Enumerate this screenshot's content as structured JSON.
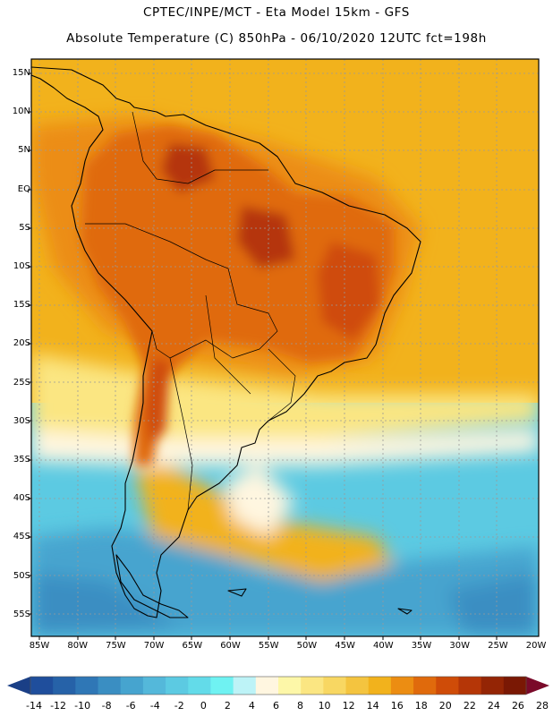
{
  "header": {
    "line1": "CPTEC/INPE/MCT -   Eta Model 15km - GFS",
    "line2": "Absolute Temperature (C) 850hPa - 06/10/2020 12UTC fct=198h"
  },
  "map": {
    "lat_labels": [
      "15N",
      "10N",
      "5N",
      "EQ",
      "5S",
      "10S",
      "15S",
      "20S",
      "25S",
      "30S",
      "35S",
      "40S",
      "45S",
      "50S",
      "55S"
    ],
    "lon_labels": [
      "85W",
      "80W",
      "75W",
      "70W",
      "65W",
      "60W",
      "55W",
      "50W",
      "45W",
      "40W",
      "35W",
      "30W",
      "25W",
      "20W"
    ]
  },
  "colorbar": {
    "labels": [
      "-14",
      "-12",
      "-10",
      "-8",
      "-6",
      "-4",
      "-2",
      "0",
      "2",
      "4",
      "6",
      "8",
      "10",
      "12",
      "14",
      "16",
      "18",
      "20",
      "22",
      "24",
      "26",
      "28"
    ],
    "colors": [
      "#1f4e9c",
      "#2662a8",
      "#2f77b6",
      "#3a8ec2",
      "#46a4cf",
      "#54b8da",
      "#5ccae2",
      "#63dbe9",
      "#6ff2f2",
      "#bdf3f7",
      "#fff6e0",
      "#fdf7a8",
      "#fbe682",
      "#f8d762",
      "#f4c43f",
      "#f2b21c",
      "#ec8d12",
      "#e06a0c",
      "#cf4c08",
      "#b53607",
      "#942505",
      "#7a1804"
    ],
    "end_colors": [
      "#1a3f86",
      "#7a0a2a"
    ]
  },
  "icons": {
    "colorbar_left": "triangle-left-icon",
    "colorbar_right": "triangle-right-icon"
  }
}
